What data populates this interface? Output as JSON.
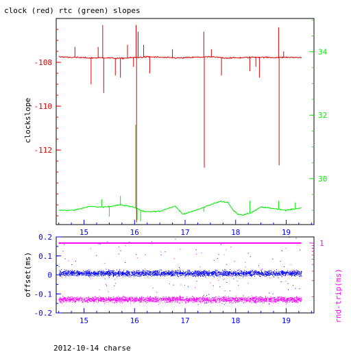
{
  "title": "clock (red) rtc (green) slopes",
  "footer": "2012-10-14 charse",
  "colors": {
    "axes": "#000000",
    "clock": "#dd0000",
    "rtc": "#00ee00",
    "offset": "#0000ff",
    "rndtrip": "#ff00ff",
    "left_ticks": "#dd0000",
    "right_ticks": "#00ee00",
    "bottom_ticks": "#0000ff"
  },
  "chart_data": [
    {
      "type": "line",
      "title": "clock (red) rtc (green) slopes",
      "ylabel": "clockslope",
      "xlabel": "",
      "grid": false,
      "xlim": [
        14.45,
        19.55
      ],
      "ylim": [
        -115.4,
        -106.0
      ],
      "y2lim": [
        28.55,
        35.05
      ],
      "xticks": [
        15,
        16,
        17,
        18,
        19
      ],
      "xtick_labels": [
        "15",
        "16",
        "17",
        "18",
        "19"
      ],
      "yticks": [
        -108,
        -110,
        -112
      ],
      "ytick_labels": [
        "-108",
        "-110",
        "-112"
      ],
      "y2ticks": [
        34,
        32,
        30
      ],
      "y2tick_labels": [
        "34",
        "32",
        "30"
      ],
      "series": [
        {
          "name": "clock (red)",
          "axis": "left",
          "x": [
            14.5,
            14.8,
            15.1,
            15.4,
            15.7,
            16.0,
            16.3,
            16.6,
            16.9,
            17.2,
            17.5,
            17.8,
            18.1,
            18.4,
            18.7,
            19.0,
            19.3
          ],
          "y": [
            -107.75,
            -107.77,
            -107.8,
            -107.79,
            -107.82,
            -107.78,
            -107.75,
            -107.78,
            -107.8,
            -107.77,
            -107.75,
            -107.8,
            -107.79,
            -107.76,
            -107.78,
            -107.77,
            -107.78
          ],
          "spikes": [
            {
              "x": 14.82,
              "y": -107.3
            },
            {
              "x": 15.14,
              "y": -109.0
            },
            {
              "x": 15.28,
              "y": -107.3
            },
            {
              "x": 15.37,
              "y": -106.3
            },
            {
              "x": 15.39,
              "y": -109.4
            },
            {
              "x": 15.62,
              "y": -108.6
            },
            {
              "x": 15.72,
              "y": -108.7
            },
            {
              "x": 15.86,
              "y": -107.2
            },
            {
              "x": 15.98,
              "y": -108.2
            },
            {
              "x": 16.03,
              "y": -106.3
            },
            {
              "x": 16.04,
              "y": -115.3
            },
            {
              "x": 16.07,
              "y": -106.6
            },
            {
              "x": 16.18,
              "y": -107.2
            },
            {
              "x": 16.3,
              "y": -108.5
            },
            {
              "x": 16.75,
              "y": -107.4
            },
            {
              "x": 17.37,
              "y": -106.6
            },
            {
              "x": 17.38,
              "y": -112.8
            },
            {
              "x": 17.52,
              "y": -107.4
            },
            {
              "x": 17.72,
              "y": -108.6
            },
            {
              "x": 18.28,
              "y": -108.4
            },
            {
              "x": 18.4,
              "y": -108.2
            },
            {
              "x": 18.47,
              "y": -108.7
            },
            {
              "x": 18.85,
              "y": -106.4
            },
            {
              "x": 18.86,
              "y": -112.7
            },
            {
              "x": 18.95,
              "y": -107.5
            }
          ]
        },
        {
          "name": "rtc (green)",
          "axis": "right",
          "x": [
            14.5,
            14.8,
            15.1,
            15.4,
            15.7,
            15.95,
            16.2,
            16.5,
            16.8,
            16.95,
            17.1,
            17.3,
            17.5,
            17.7,
            17.85,
            17.95,
            18.05,
            18.15,
            18.3,
            18.5,
            18.8,
            19.0,
            19.3
          ],
          "y": [
            29.0,
            29.0,
            29.12,
            29.1,
            29.17,
            29.12,
            28.95,
            28.97,
            29.14,
            28.88,
            28.94,
            29.05,
            29.18,
            29.28,
            29.25,
            29.0,
            28.88,
            28.85,
            28.92,
            29.1,
            29.05,
            29.0,
            29.08
          ],
          "spikes": [
            {
              "x": 15.35,
              "y": 29.35
            },
            {
              "x": 15.5,
              "y": 28.8
            },
            {
              "x": 15.72,
              "y": 29.45
            },
            {
              "x": 16.02,
              "y": 31.7
            },
            {
              "x": 16.05,
              "y": 28.7
            },
            {
              "x": 16.12,
              "y": 28.65
            },
            {
              "x": 17.37,
              "y": 28.95
            },
            {
              "x": 18.28,
              "y": 29.3
            },
            {
              "x": 18.85,
              "y": 29.3
            },
            {
              "x": 19.18,
              "y": 29.25
            }
          ]
        }
      ]
    },
    {
      "type": "scatter",
      "ylabel": "offset(ms)",
      "y2label": "rnd-trip(ms)",
      "xlabel": "2012-10-14 charse",
      "grid": false,
      "xlim": [
        14.45,
        19.55
      ],
      "ylim": [
        -0.2,
        0.2
      ],
      "y2_scale": "log",
      "y2lim": [
        0.05,
        1.3
      ],
      "xticks": [
        15,
        16,
        17,
        18,
        19
      ],
      "xtick_labels": [
        "15",
        "16",
        "17",
        "18",
        "19"
      ],
      "yticks": [
        0.2,
        0.1,
        0,
        -0.1,
        -0.2
      ],
      "ytick_labels": [
        "0.2",
        "0.1",
        "0",
        "-0.1",
        "-0.2"
      ],
      "y2ticks": [
        1
      ],
      "y2tick_labels": [
        "1"
      ],
      "series": [
        {
          "name": "offset",
          "axis": "left",
          "x_range": [
            14.5,
            19.3
          ],
          "center": 0.01,
          "spread": 0.015,
          "outlier_range": [
            -0.16,
            0.2
          ]
        },
        {
          "name": "rnd-trip upper band",
          "axis": "right",
          "x_range": [
            14.5,
            19.3
          ],
          "center": 1.0
        },
        {
          "name": "rnd-trip lower band",
          "axis": "right",
          "x_range": [
            14.5,
            19.3
          ],
          "center": 0.09,
          "spread_pct": 12
        }
      ]
    }
  ]
}
